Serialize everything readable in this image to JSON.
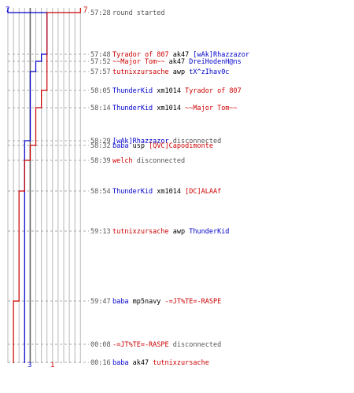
{
  "chart_data": {
    "type": "step-timeline",
    "team_start_counts": {
      "blue": "7",
      "red": "7"
    },
    "team_end_counts": {
      "blue": "3",
      "red": "1"
    },
    "colors": {
      "blue": "#0000cc",
      "red": "#cc0000",
      "neutral": "#555555",
      "black": "#000000",
      "grid": "#b8b8b8"
    },
    "events": [
      {
        "time": "57:28",
        "parts": [
          {
            "t": "round started",
            "c": "neutral"
          }
        ]
      },
      {
        "time": "57:48",
        "parts": [
          {
            "t": "Tyrador of 807",
            "c": "red"
          },
          {
            "t": " ak47 ",
            "c": "black"
          },
          {
            "t": "[wAk]Rhazzazor",
            "c": "blue"
          }
        ]
      },
      {
        "time": "57:52",
        "parts": [
          {
            "t": "~~Major Tom~~",
            "c": "red"
          },
          {
            "t": " ak47 ",
            "c": "black"
          },
          {
            "t": "DreiHodenH@ns",
            "c": "blue"
          }
        ]
      },
      {
        "time": "57:57",
        "parts": [
          {
            "t": "tutnixzursache",
            "c": "red"
          },
          {
            "t": " awp ",
            "c": "black"
          },
          {
            "t": "tX^zIhav0c",
            "c": "blue"
          }
        ]
      },
      {
        "time": "58:05",
        "parts": [
          {
            "t": "ThunderKid",
            "c": "blue"
          },
          {
            "t": " xm1014 ",
            "c": "black"
          },
          {
            "t": "Tyrador of 807",
            "c": "red"
          }
        ]
      },
      {
        "time": "58:14",
        "parts": [
          {
            "t": "ThunderKid",
            "c": "blue"
          },
          {
            "t": " xm1014 ",
            "c": "black"
          },
          {
            "t": "~~Major Tom~~",
            "c": "red"
          }
        ]
      },
      {
        "time": "58:29",
        "parts": [
          {
            "t": "[wAk]Rhazzazor",
            "c": "blue"
          },
          {
            "t": " disconnected",
            "c": "neutral"
          }
        ]
      },
      {
        "time": "58:32",
        "parts": [
          {
            "t": "baba",
            "c": "blue"
          },
          {
            "t": " usp ",
            "c": "black"
          },
          {
            "t": "[QVC]Capodimonte",
            "c": "red"
          }
        ]
      },
      {
        "time": "58:39",
        "parts": [
          {
            "t": "welch",
            "c": "red"
          },
          {
            "t": " disconnected",
            "c": "neutral"
          }
        ]
      },
      {
        "time": "58:54",
        "parts": [
          {
            "t": "ThunderKid",
            "c": "blue"
          },
          {
            "t": " xm1014 ",
            "c": "black"
          },
          {
            "t": "[DC]ALAAf",
            "c": "red"
          }
        ]
      },
      {
        "time": "59:13",
        "parts": [
          {
            "t": "tutnixzursache",
            "c": "red"
          },
          {
            "t": " awp ",
            "c": "black"
          },
          {
            "t": "ThunderKid",
            "c": "blue"
          }
        ]
      },
      {
        "time": "59:47",
        "parts": [
          {
            "t": "baba",
            "c": "blue"
          },
          {
            "t": " mp5navy ",
            "c": "black"
          },
          {
            "t": "-=JT%TE=-RASPE",
            "c": "red"
          }
        ]
      },
      {
        "time": "00:08",
        "parts": [
          {
            "t": "-=JT%TE=-RASPE",
            "c": "red"
          },
          {
            "t": " disconnected",
            "c": "neutral"
          }
        ]
      },
      {
        "time": "00:16",
        "parts": [
          {
            "t": "baba",
            "c": "blue"
          },
          {
            "t": " ak47 ",
            "c": "black"
          },
          {
            "t": "tutnixzursache",
            "c": "red"
          }
        ]
      }
    ],
    "blue_alive_after_event": [
      7,
      6,
      5,
      4,
      4,
      4,
      3,
      3,
      3,
      3,
      3,
      3,
      3,
      3
    ],
    "red_alive_after_event": [
      7,
      7,
      7,
      7,
      6,
      5,
      5,
      4,
      3,
      2,
      2,
      1,
      1,
      1
    ],
    "highlighted_gridline": 4,
    "gridline_count": 14
  }
}
